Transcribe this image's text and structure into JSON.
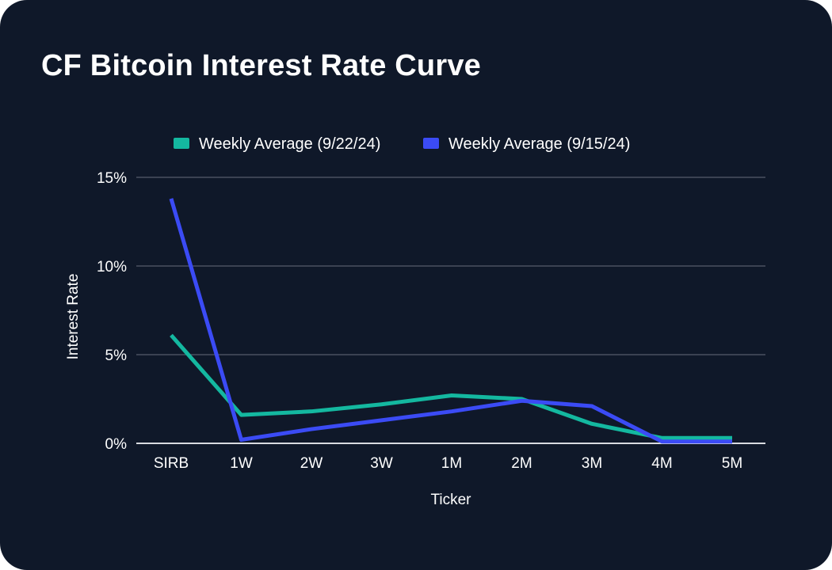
{
  "title": "CF Bitcoin Interest Rate Curve",
  "colors": {
    "background": "#0f1829",
    "series_a": "#14b8a0",
    "series_b": "#3b4bf5",
    "grid": "#4a5060",
    "baseline": "#d8dbe0",
    "text": "#ffffff"
  },
  "chart_data": {
    "type": "line",
    "title": "CF Bitcoin Interest Rate Curve",
    "xlabel": "Ticker",
    "ylabel": "Interest Rate",
    "categories": [
      "SIRB",
      "1W",
      "2W",
      "3W",
      "1M",
      "2M",
      "3M",
      "4M",
      "5M"
    ],
    "y_ticks": [
      0,
      5,
      10,
      15
    ],
    "y_tick_labels": [
      "0%",
      "5%",
      "10%",
      "15%"
    ],
    "ylim": [
      0,
      15
    ],
    "grid": true,
    "legend_position": "top-center",
    "series": [
      {
        "name": "Weekly Average (9/22/24)",
        "color": "#14b8a0",
        "values": [
          6.1,
          1.6,
          1.8,
          2.2,
          2.7,
          2.5,
          1.1,
          0.3,
          0.3
        ]
      },
      {
        "name": "Weekly Average (9/15/24)",
        "color": "#3b4bf5",
        "values": [
          13.8,
          0.2,
          0.8,
          1.3,
          1.8,
          2.4,
          2.1,
          0.1,
          0.1
        ]
      }
    ]
  }
}
